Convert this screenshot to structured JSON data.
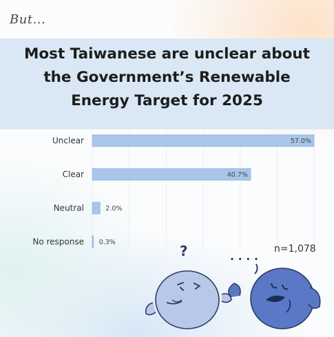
{
  "header": {
    "kicker": "But...",
    "title_lines": [
      "Most Taiwanese are unclear about",
      "the Government’s Renewable",
      "Energy Target for 2025"
    ]
  },
  "chart_data": {
    "type": "bar",
    "orientation": "horizontal",
    "categories": [
      "Unclear",
      "Clear",
      "Neutral",
      "No response"
    ],
    "values": [
      57.0,
      40.7,
      2.0,
      0.3
    ],
    "data_labels": [
      "57.0%",
      "40.7%",
      "2.0%",
      "0.3%"
    ],
    "xlim": [
      0,
      57
    ],
    "grid": true,
    "bar_color": "#a9c6ea",
    "bar_edge_color": "#8fb2df"
  },
  "sample_note": "n=1,078",
  "illustration": {
    "question_mark": "?",
    "ellipsis": ". . . .",
    "left_figure_color": "#b9c7e8",
    "right_figure_color": "#5a78c6"
  }
}
